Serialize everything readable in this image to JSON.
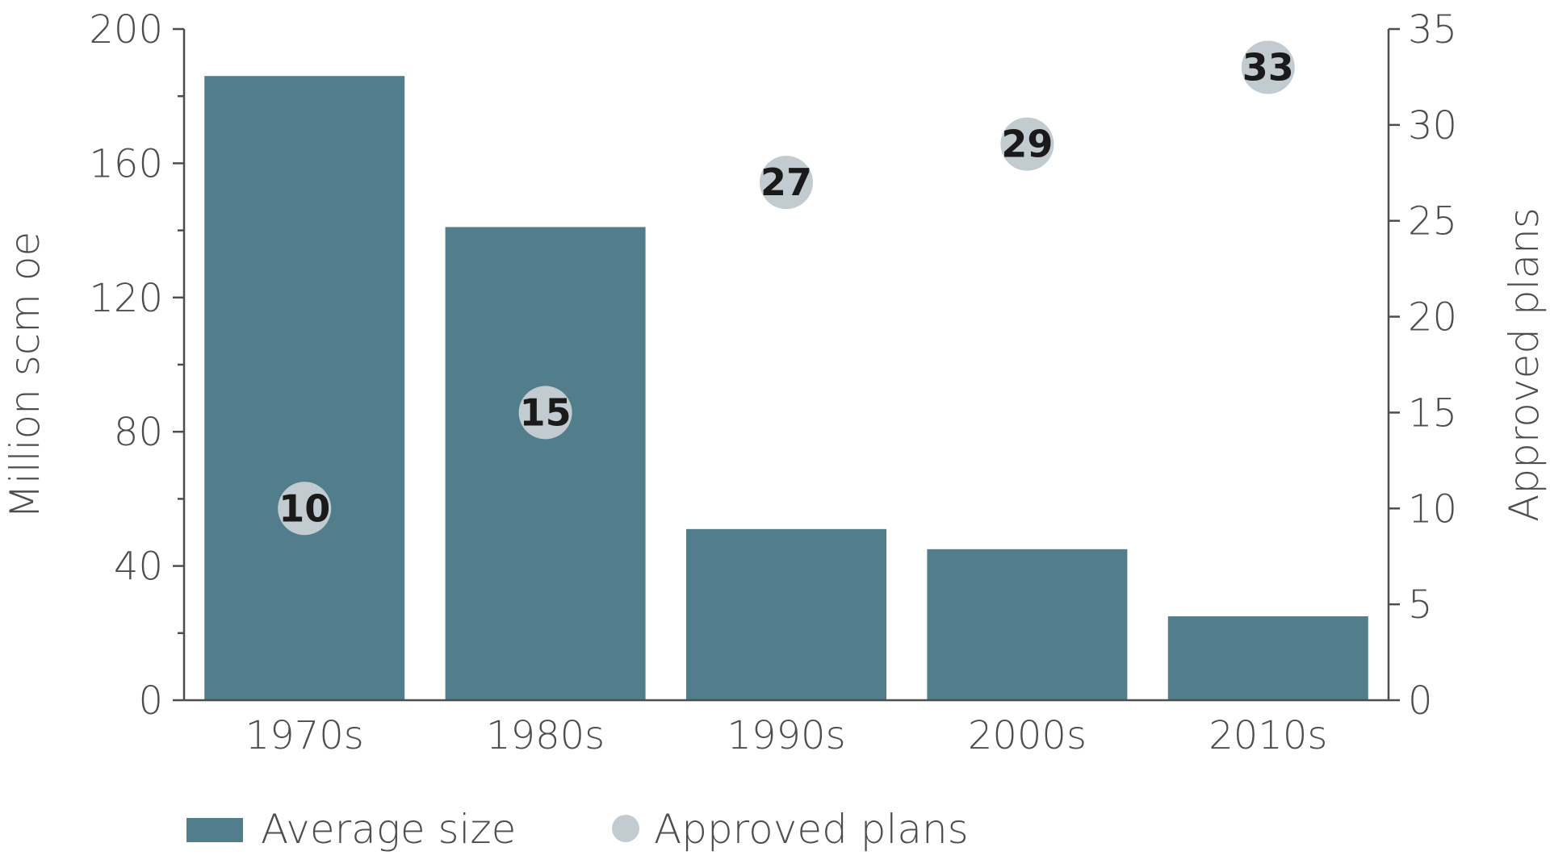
{
  "chart_data": {
    "type": "bar",
    "categories": [
      "1970s",
      "1980s",
      "1990s",
      "2000s",
      "2010s"
    ],
    "series": [
      {
        "name": "Average size",
        "type": "bar",
        "axis": "left",
        "values": [
          186,
          141,
          51,
          45,
          25
        ]
      },
      {
        "name": "Approved plans",
        "type": "scatter",
        "axis": "right",
        "values": [
          10,
          15,
          27,
          29,
          33
        ]
      }
    ],
    "ylabel": "Million scm oe",
    "ylim": [
      0,
      200
    ],
    "yticks": [
      0,
      40,
      80,
      120,
      160,
      200
    ],
    "y2label": "Approved plans",
    "y2lim": [
      0,
      35
    ],
    "y2ticks": [
      0,
      5,
      10,
      15,
      20,
      25,
      30,
      35
    ],
    "legend_position": "bottom-left",
    "grid": false,
    "colors": {
      "bar": "#527e8c",
      "dot": "#c2cbd0",
      "axis": "#4d4d4d"
    }
  }
}
